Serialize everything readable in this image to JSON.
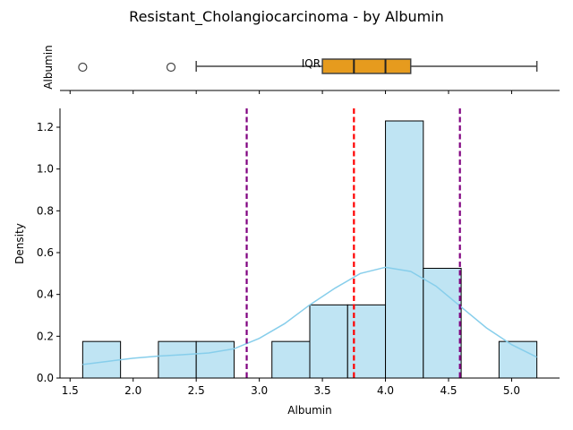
{
  "suptitle": "Resistant_Cholangiocarcinoma - by Albumin",
  "colors": {
    "hist_fill": "#bfe4f3",
    "hist_edge": "#000000",
    "kde": "#87ceeb",
    "mean_line": "#ff0000",
    "std_line": "#800080",
    "box_fill": "#e69b1e",
    "box_edge": "#444444"
  },
  "chart_data": [
    {
      "type": "box",
      "ylabel": "Albumin",
      "annotation": "IQR",
      "whisker_low": 2.5,
      "q1": 3.5,
      "median": 4.0,
      "mean": 3.75,
      "q3": 4.2,
      "whisker_high": 5.2,
      "outliers": [
        1.6,
        2.3
      ]
    },
    {
      "type": "histogram",
      "xlabel": "Albumin",
      "ylabel": "Density",
      "xlim": [
        1.42,
        5.38
      ],
      "ylim": [
        0,
        1.29
      ],
      "xticks": [
        "1.5",
        "2.0",
        "2.5",
        "3.0",
        "3.5",
        "4.0",
        "4.5",
        "5.0"
      ],
      "yticks": [
        "0.0",
        "0.2",
        "0.4",
        "0.6",
        "0.8",
        "1.0",
        "1.2"
      ],
      "bins": [
        {
          "x0": 1.6,
          "x1": 1.9,
          "density": 0.175
        },
        {
          "x0": 2.2,
          "x1": 2.5,
          "density": 0.175
        },
        {
          "x0": 2.5,
          "x1": 2.8,
          "density": 0.175
        },
        {
          "x0": 3.1,
          "x1": 3.4,
          "density": 0.175
        },
        {
          "x0": 3.4,
          "x1": 3.7,
          "density": 0.35
        },
        {
          "x0": 3.7,
          "x1": 4.0,
          "density": 0.35
        },
        {
          "x0": 4.0,
          "x1": 4.3,
          "density": 1.23
        },
        {
          "x0": 4.3,
          "x1": 4.6,
          "density": 0.525
        },
        {
          "x0": 4.9,
          "x1": 5.2,
          "density": 0.175
        }
      ],
      "kde": {
        "x": [
          1.6,
          1.8,
          2.0,
          2.2,
          2.4,
          2.6,
          2.8,
          3.0,
          3.2,
          3.4,
          3.6,
          3.8,
          4.0,
          4.2,
          4.4,
          4.6,
          4.8,
          5.0,
          5.2
        ],
        "y": [
          0.065,
          0.08,
          0.095,
          0.105,
          0.112,
          0.12,
          0.14,
          0.19,
          0.26,
          0.35,
          0.43,
          0.5,
          0.53,
          0.51,
          0.44,
          0.34,
          0.24,
          0.16,
          0.1
        ]
      },
      "vlines": {
        "mean": 3.75,
        "std_low": 2.9,
        "std_high": 4.59
      }
    }
  ]
}
